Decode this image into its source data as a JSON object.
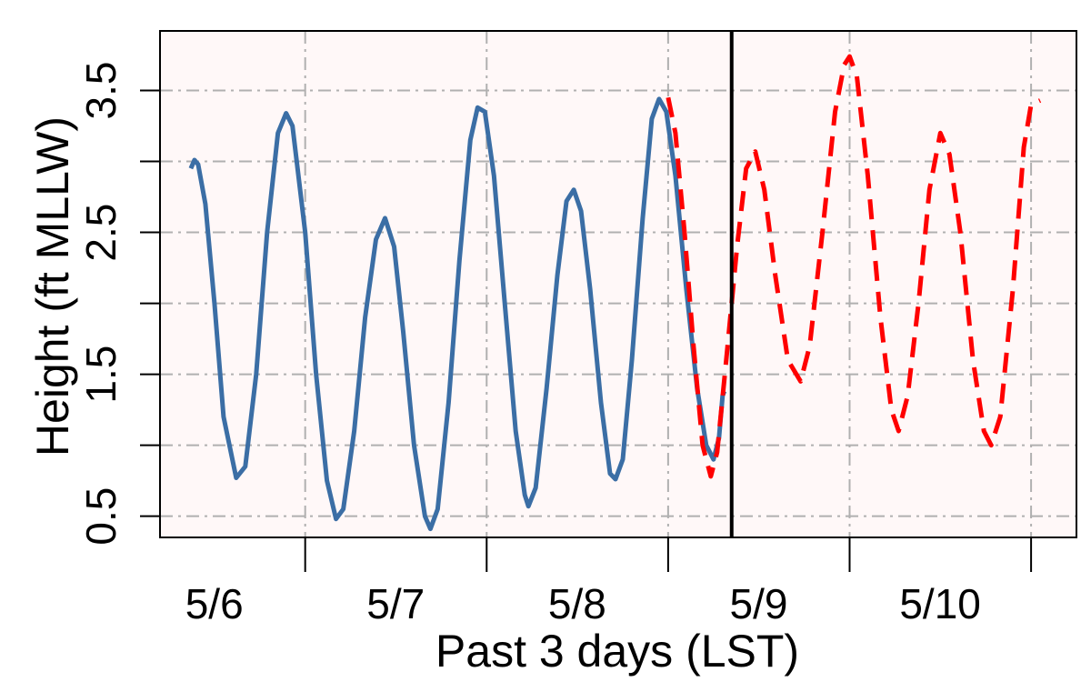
{
  "chart_data": {
    "type": "line",
    "xlabel": "Past 3 days (LST)",
    "ylabel": "Height (ft MLLW)",
    "x_tick_labels": [
      "5/6",
      "5/7",
      "5/8",
      "5/9",
      "5/10"
    ],
    "y_ticks": [
      0.5,
      1,
      1.5,
      2,
      2.5,
      3,
      3.5
    ],
    "y_tick_labels": [
      "0.5",
      "1.5",
      "2.5",
      "3.5"
    ],
    "x_unit": "days since 5/6 00:00 LST",
    "xlim": [
      -0.8,
      4.25
    ],
    "ylim": [
      0.35,
      3.92
    ],
    "now_marker_x": 2.35,
    "grid": true,
    "colors": {
      "panel_background": "#fff8f8",
      "observed": "#3b6ea5",
      "predicted": "#ff0000",
      "now_line": "#000000",
      "grid": "#b0b0b0"
    },
    "series": [
      {
        "style": "solid",
        "points": [
          [
            -0.63,
            2.95
          ],
          [
            -0.61,
            3.01
          ],
          [
            -0.59,
            2.98
          ],
          [
            -0.55,
            2.7
          ],
          [
            -0.5,
            2.0
          ],
          [
            -0.45,
            1.2
          ],
          [
            -0.38,
            0.77
          ],
          [
            -0.33,
            0.85
          ],
          [
            -0.27,
            1.5
          ],
          [
            -0.21,
            2.5
          ],
          [
            -0.15,
            3.2
          ],
          [
            -0.105,
            3.34
          ],
          [
            -0.07,
            3.25
          ],
          [
            0.0,
            2.5
          ],
          [
            0.06,
            1.5
          ],
          [
            0.12,
            0.75
          ],
          [
            0.17,
            0.48
          ],
          [
            0.21,
            0.55
          ],
          [
            0.27,
            1.1
          ],
          [
            0.33,
            1.9
          ],
          [
            0.39,
            2.45
          ],
          [
            0.44,
            2.6
          ],
          [
            0.49,
            2.4
          ],
          [
            0.54,
            1.8
          ],
          [
            0.6,
            1.0
          ],
          [
            0.66,
            0.5
          ],
          [
            0.69,
            0.41
          ],
          [
            0.73,
            0.55
          ],
          [
            0.79,
            1.3
          ],
          [
            0.85,
            2.3
          ],
          [
            0.91,
            3.15
          ],
          [
            0.95,
            3.38
          ],
          [
            0.99,
            3.35
          ],
          [
            1.04,
            2.9
          ],
          [
            1.1,
            2.0
          ],
          [
            1.16,
            1.1
          ],
          [
            1.21,
            0.65
          ],
          [
            1.23,
            0.57
          ],
          [
            1.27,
            0.7
          ],
          [
            1.33,
            1.4
          ],
          [
            1.39,
            2.2
          ],
          [
            1.44,
            2.72
          ],
          [
            1.48,
            2.8
          ],
          [
            1.52,
            2.65
          ],
          [
            1.57,
            2.1
          ],
          [
            1.63,
            1.3
          ],
          [
            1.68,
            0.8
          ],
          [
            1.71,
            0.76
          ],
          [
            1.75,
            0.9
          ],
          [
            1.8,
            1.6
          ],
          [
            1.86,
            2.6
          ],
          [
            1.91,
            3.3
          ],
          [
            1.95,
            3.44
          ],
          [
            1.99,
            3.35
          ],
          [
            2.04,
            2.9
          ],
          [
            2.1,
            2.1
          ],
          [
            2.16,
            1.4
          ],
          [
            2.21,
            1.0
          ],
          [
            2.25,
            0.9
          ],
          [
            2.28,
            1.05
          ],
          [
            2.3,
            1.35
          ],
          [
            2.31,
            1.38
          ]
        ]
      },
      {
        "style": "dashed",
        "points": [
          [
            2.0,
            3.45
          ],
          [
            2.04,
            3.2
          ],
          [
            2.09,
            2.5
          ],
          [
            2.14,
            1.7
          ],
          [
            2.19,
            1.0
          ],
          [
            2.235,
            0.78
          ],
          [
            2.27,
            0.95
          ],
          [
            2.32,
            1.6
          ],
          [
            2.38,
            2.4
          ],
          [
            2.43,
            2.95
          ],
          [
            2.48,
            3.07
          ],
          [
            2.53,
            2.8
          ],
          [
            2.59,
            2.2
          ],
          [
            2.66,
            1.6
          ],
          [
            2.73,
            1.45
          ],
          [
            2.78,
            1.7
          ],
          [
            2.85,
            2.5
          ],
          [
            2.92,
            3.35
          ],
          [
            2.97,
            3.68
          ],
          [
            3.0,
            3.74
          ],
          [
            3.04,
            3.6
          ],
          [
            3.1,
            2.9
          ],
          [
            3.17,
            1.9
          ],
          [
            3.23,
            1.25
          ],
          [
            3.27,
            1.1
          ],
          [
            3.32,
            1.35
          ],
          [
            3.38,
            2.0
          ],
          [
            3.44,
            2.8
          ],
          [
            3.5,
            3.2
          ],
          [
            3.55,
            3.05
          ],
          [
            3.61,
            2.5
          ],
          [
            3.68,
            1.6
          ],
          [
            3.74,
            1.1
          ],
          [
            3.78,
            1.0
          ],
          [
            3.83,
            1.2
          ],
          [
            3.9,
            2.1
          ],
          [
            3.96,
            3.1
          ],
          [
            4.0,
            3.4
          ],
          [
            4.05,
            3.43
          ]
        ]
      }
    ]
  }
}
